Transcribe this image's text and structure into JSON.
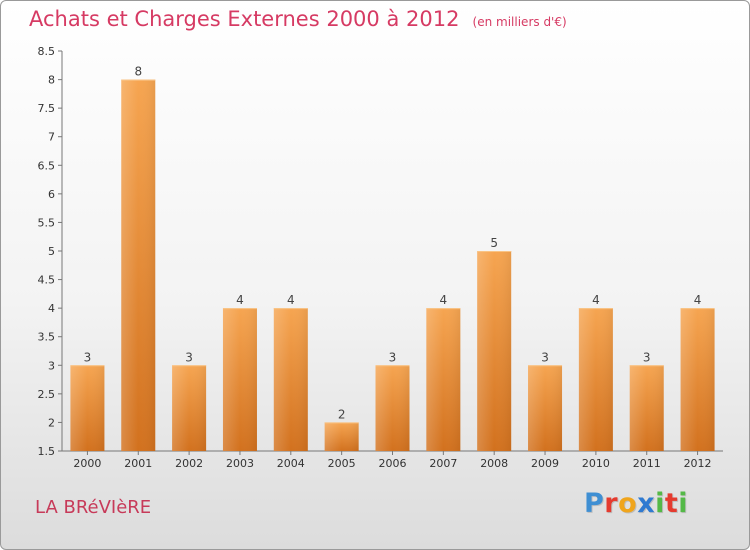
{
  "title": "Achats et Charges Externes 2000 à 2012",
  "unit_note": "(en milliers d'€)",
  "commune": "LA BRéVIèRE",
  "logo_text": "Proxiti",
  "colors": {
    "title": "#d63a63",
    "bar_light": "#f6a551",
    "bar_dark": "#d2711e",
    "commune": "#c73a59"
  },
  "chart_data": {
    "type": "bar",
    "title": "Achats et Charges Externes 2000 à 2012",
    "subtitle": "(en milliers d'€)",
    "categories": [
      "2000",
      "2001",
      "2002",
      "2003",
      "2004",
      "2005",
      "2006",
      "2007",
      "2008",
      "2009",
      "2010",
      "2011",
      "2012"
    ],
    "values": [
      3,
      8,
      3,
      4,
      4,
      2,
      3,
      4,
      5,
      3,
      4,
      3,
      4
    ],
    "value_labels": [
      "3",
      "8",
      "3",
      "4",
      "4",
      "2",
      "3",
      "4",
      "5",
      "3",
      "4",
      "3",
      "4"
    ],
    "ylim": [
      1.5,
      8.5
    ],
    "yticks": [
      "1.5",
      "2",
      "2.5",
      "3",
      "3.5",
      "4",
      "4.5",
      "5",
      "5.5",
      "6",
      "6.5",
      "7",
      "7.5",
      "8",
      "8.5"
    ],
    "grid": false,
    "legend": "none"
  }
}
